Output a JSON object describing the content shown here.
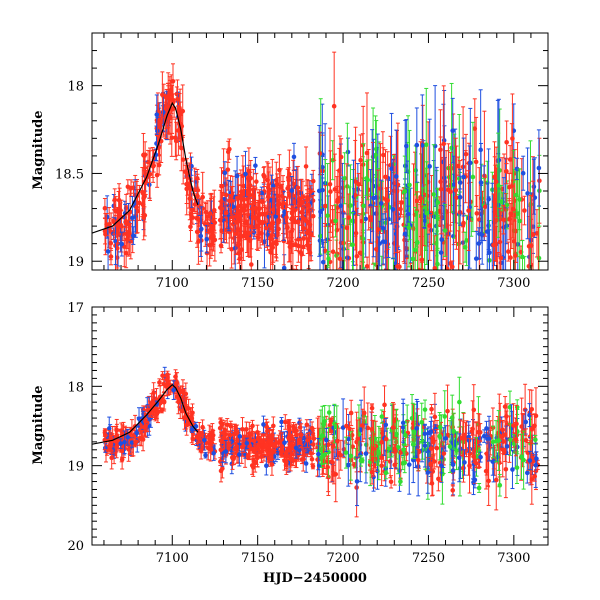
{
  "chart_data": [
    {
      "type": "scatter",
      "panel": "top",
      "xlabel": "",
      "ylabel": "Magnitude",
      "xlim": [
        7053,
        7320
      ],
      "ylim": [
        19.05,
        17.7
      ],
      "xticks": [
        7100,
        7150,
        7200,
        7250,
        7300
      ],
      "xtick_labels": [
        "7100",
        "7150",
        "7200",
        "7250",
        "7300"
      ],
      "yticks": [
        18,
        18.5,
        19
      ],
      "ytick_labels": [
        "18",
        "18.5",
        "19"
      ],
      "series": [
        {
          "name": "blue band",
          "color": "#1f4fe0"
        },
        {
          "name": "green band",
          "color": "#33dd33"
        },
        {
          "name": "red band",
          "color": "#ff3322"
        }
      ],
      "model_curve": {
        "x": [
          7053,
          7065,
          7075,
          7085,
          7092,
          7097,
          7100,
          7102,
          7105,
          7108,
          7112,
          7115
        ],
        "y": [
          18.84,
          18.8,
          18.71,
          18.52,
          18.33,
          18.17,
          18.1,
          18.13,
          18.25,
          18.42,
          18.6,
          18.68
        ]
      }
    },
    {
      "type": "scatter",
      "panel": "bottom",
      "xlabel": "HJD−2450000",
      "ylabel": "Magnitude",
      "xlim": [
        7053,
        7320
      ],
      "ylim": [
        20,
        17
      ],
      "xticks": [
        7100,
        7150,
        7200,
        7250,
        7300
      ],
      "xtick_labels": [
        "7100",
        "7150",
        "7200",
        "7250",
        "7300"
      ],
      "yticks": [
        17,
        18,
        19,
        20
      ],
      "ytick_labels": [
        "17",
        "18",
        "19",
        "20"
      ],
      "series": [
        {
          "name": "blue band",
          "color": "#1f4fe0"
        },
        {
          "name": "green band",
          "color": "#33dd33"
        },
        {
          "name": "red band",
          "color": "#ff3322"
        }
      ],
      "model_curve": {
        "x": [
          7053,
          7065,
          7075,
          7085,
          7092,
          7097,
          7100,
          7102,
          7105,
          7108,
          7112,
          7115
        ],
        "y": [
          18.73,
          18.68,
          18.58,
          18.36,
          18.18,
          18.04,
          17.98,
          18.02,
          18.15,
          18.34,
          18.5,
          18.58
        ]
      }
    }
  ]
}
